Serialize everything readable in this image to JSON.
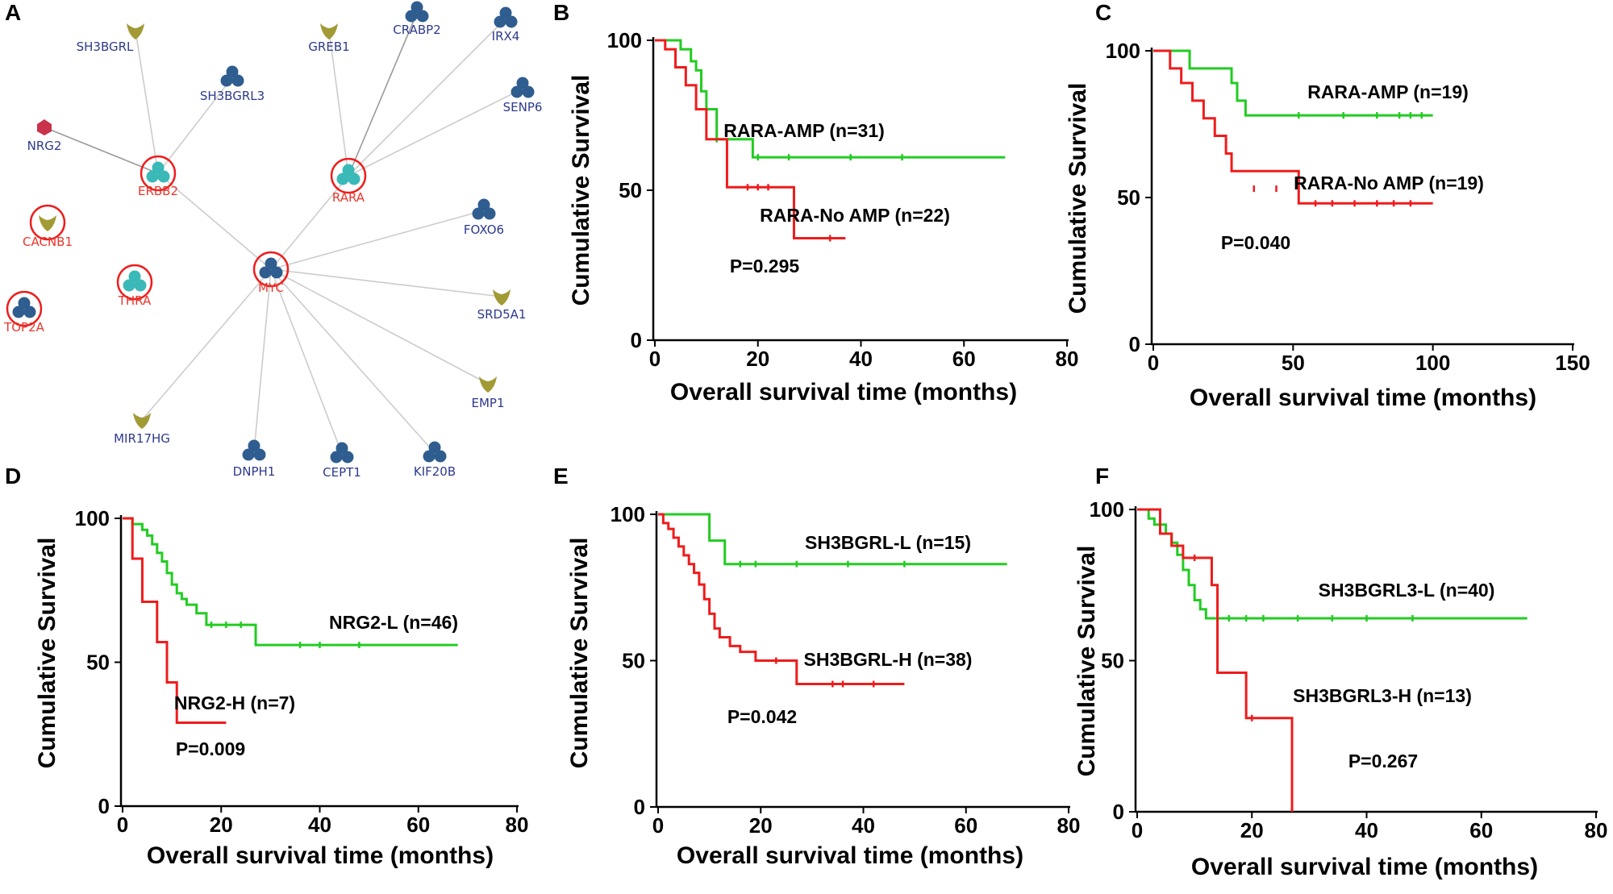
{
  "colors": {
    "green": "#22cc22",
    "red": "#ee1c1c",
    "edge": "#cccccc",
    "highlight": "#ee1c1c",
    "node_blue": "#2f5d8f",
    "node_teal": "#3bb8b8",
    "node_olive": "#a29a34",
    "node_red": "#c8324b",
    "label_blue": "#2d3a8c",
    "label_red": "#e8362c"
  },
  "network": {
    "letter": "A",
    "nodes": [
      {
        "id": "SH3BGRL",
        "shape": "v",
        "color": "node_olive",
        "highlight": false
      },
      {
        "id": "SH3BGRL3",
        "shape": "tri",
        "color": "node_blue",
        "highlight": false
      },
      {
        "id": "GREB1",
        "shape": "v",
        "color": "node_olive",
        "highlight": false
      },
      {
        "id": "CRABP2",
        "shape": "tri",
        "color": "node_blue",
        "highlight": false
      },
      {
        "id": "IRX4",
        "shape": "tri",
        "color": "node_blue",
        "highlight": false
      },
      {
        "id": "SENP6",
        "shape": "tri",
        "color": "node_blue",
        "highlight": false
      },
      {
        "id": "NRG2",
        "shape": "circle",
        "color": "node_red",
        "highlight": false
      },
      {
        "id": "ERBB2",
        "shape": "tri",
        "color": "node_teal",
        "highlight": true
      },
      {
        "id": "RARA",
        "shape": "tri",
        "color": "node_teal",
        "highlight": true
      },
      {
        "id": "CACNB1",
        "shape": "v",
        "color": "node_olive",
        "highlight": true
      },
      {
        "id": "FOXO6",
        "shape": "tri",
        "color": "node_blue",
        "highlight": false
      },
      {
        "id": "THRA",
        "shape": "tri",
        "color": "node_teal",
        "highlight": true
      },
      {
        "id": "MYC",
        "shape": "tri",
        "color": "node_blue",
        "highlight": true
      },
      {
        "id": "TOP2A",
        "shape": "tri",
        "color": "node_blue",
        "highlight": true
      },
      {
        "id": "SRD5A1",
        "shape": "v",
        "color": "node_olive",
        "highlight": false
      },
      {
        "id": "EMP1",
        "shape": "v",
        "color": "node_olive",
        "highlight": false
      },
      {
        "id": "MIR17HG",
        "shape": "v",
        "color": "node_olive",
        "highlight": false
      },
      {
        "id": "DNPH1",
        "shape": "tri",
        "color": "node_blue",
        "highlight": false
      },
      {
        "id": "CEPT1",
        "shape": "tri",
        "color": "node_blue",
        "highlight": false
      },
      {
        "id": "KIF20B",
        "shape": "tri",
        "color": "node_blue",
        "highlight": false
      }
    ],
    "edges": [
      [
        "SH3BGRL",
        "ERBB2"
      ],
      [
        "SH3BGRL3",
        "ERBB2"
      ],
      [
        "NRG2",
        "ERBB2"
      ],
      [
        "ERBB2",
        "MYC"
      ],
      [
        "GREB1",
        "RARA"
      ],
      [
        "CRABP2",
        "RARA"
      ],
      [
        "IRX4",
        "RARA"
      ],
      [
        "SENP6",
        "RARA"
      ],
      [
        "RARA",
        "MYC"
      ],
      [
        "MYC",
        "FOXO6"
      ],
      [
        "MYC",
        "SRD5A1"
      ],
      [
        "MYC",
        "EMP1"
      ],
      [
        "MYC",
        "KIF20B"
      ],
      [
        "MYC",
        "CEPT1"
      ],
      [
        "MYC",
        "DNPH1"
      ],
      [
        "MYC",
        "MIR17HG"
      ]
    ]
  },
  "chart_data": [
    {
      "panel": "B",
      "type": "line",
      "step": true,
      "xlabel": "Overall survival time (months)",
      "ylabel": "Cumulative Survival",
      "xlim": [
        0,
        80
      ],
      "ylim": [
        0,
        100
      ],
      "xticks": [
        0,
        20,
        40,
        60,
        80
      ],
      "yticks": [
        0,
        50,
        100
      ],
      "pvalue": "P=0.295",
      "series": [
        {
          "name": "RARA-AMP (n=31)",
          "color": "green",
          "times": [
            3,
            5,
            7,
            8,
            9,
            10,
            12,
            19,
            68
          ],
          "values": [
            100,
            97,
            93,
            90,
            83,
            77,
            67,
            61,
            61
          ],
          "censored": [
            [
              12,
              67
            ],
            [
              20,
              61
            ],
            [
              26,
              61
            ],
            [
              38,
              61
            ],
            [
              48,
              61
            ]
          ]
        },
        {
          "name": "RARA-No AMP (n=22)",
          "color": "red",
          "times": [
            2,
            4,
            6,
            8,
            10,
            14,
            27,
            37
          ],
          "values": [
            97,
            91,
            85,
            77,
            67,
            51,
            34,
            34
          ],
          "censored": [
            [
              18,
              51
            ],
            [
              20,
              51
            ],
            [
              22,
              51
            ],
            [
              34,
              34
            ]
          ]
        }
      ]
    },
    {
      "panel": "C",
      "type": "line",
      "step": true,
      "xlabel": "Overall survival time (months)",
      "ylabel": "Cumulative Survival",
      "xlim": [
        0,
        150
      ],
      "ylim": [
        0,
        100
      ],
      "xticks": [
        0,
        50,
        100,
        150
      ],
      "yticks": [
        0,
        50,
        100
      ],
      "pvalue": "P=0.040",
      "series": [
        {
          "name": "RARA-AMP (n=19)",
          "color": "green",
          "times": [
            13,
            28,
            30,
            33,
            100
          ],
          "values": [
            94,
            89,
            83,
            78,
            78
          ],
          "censored": [
            [
              52,
              78
            ],
            [
              68,
              78
            ],
            [
              80,
              78
            ],
            [
              88,
              78
            ],
            [
              92,
              78
            ],
            [
              96,
              78
            ]
          ]
        },
        {
          "name": "RARA-No AMP (n=19)",
          "color": "red",
          "times": [
            6,
            10,
            14,
            18,
            22,
            26,
            28,
            52,
            100
          ],
          "values": [
            94,
            89,
            83,
            77,
            71,
            65,
            59,
            48,
            48
          ],
          "censored": [
            [
              36,
              53
            ],
            [
              44,
              53
            ],
            [
              58,
              48
            ],
            [
              64,
              48
            ],
            [
              72,
              48
            ],
            [
              80,
              48
            ],
            [
              86,
              48
            ],
            [
              92,
              48
            ]
          ]
        }
      ]
    },
    {
      "panel": "D",
      "type": "line",
      "step": true,
      "xlabel": "Overall survival time (months)",
      "ylabel": "Cumulative Survival",
      "xlim": [
        0,
        80
      ],
      "ylim": [
        0,
        100
      ],
      "xticks": [
        0,
        20,
        40,
        60,
        80
      ],
      "yticks": [
        0,
        50,
        100
      ],
      "pvalue": "P=0.009",
      "series": [
        {
          "name": "NRG2-L (n=46)",
          "color": "green",
          "times": [
            2,
            4,
            5,
            6,
            7,
            8,
            9,
            10,
            11,
            12,
            13,
            15,
            17,
            27,
            68
          ],
          "values": [
            98,
            96,
            94,
            91,
            88,
            85,
            81,
            77,
            74,
            72,
            70,
            67,
            63,
            56,
            56
          ],
          "censored": [
            [
              18,
              63
            ],
            [
              21,
              63
            ],
            [
              24,
              63
            ],
            [
              36,
              56
            ],
            [
              40,
              56
            ],
            [
              48,
              56
            ]
          ]
        },
        {
          "name": "NRG2-H (n=7)",
          "color": "red",
          "times": [
            2,
            4,
            7,
            9,
            11,
            21
          ],
          "values": [
            86,
            71,
            57,
            43,
            29,
            29
          ],
          "censored": []
        }
      ]
    },
    {
      "panel": "E",
      "type": "line",
      "step": true,
      "xlabel": "Overall survival time (months)",
      "ylabel": "Cumulative Survival",
      "xlim": [
        0,
        80
      ],
      "ylim": [
        0,
        100
      ],
      "xticks": [
        0,
        20,
        40,
        60,
        80
      ],
      "yticks": [
        0,
        50,
        100
      ],
      "pvalue": "P=0.042",
      "series": [
        {
          "name": "SH3BGRL-L (n=15)",
          "color": "green",
          "times": [
            10,
            13,
            68
          ],
          "values": [
            91,
            83,
            83
          ],
          "censored": [
            [
              16,
              83
            ],
            [
              19,
              83
            ],
            [
              27,
              83
            ],
            [
              37,
              83
            ],
            [
              48,
              83
            ]
          ]
        },
        {
          "name": "SH3BGRL-H (n=38)",
          "color": "red",
          "times": [
            1,
            2,
            3,
            4,
            5,
            6,
            7,
            8,
            9,
            10,
            11,
            12,
            14,
            16,
            19,
            27,
            48
          ],
          "values": [
            97,
            95,
            92,
            89,
            86,
            83,
            80,
            76,
            71,
            66,
            61,
            58,
            55,
            53,
            50,
            42,
            42
          ],
          "censored": [
            [
              23,
              50
            ],
            [
              34,
              42
            ],
            [
              36,
              42
            ],
            [
              42,
              42
            ]
          ]
        }
      ]
    },
    {
      "panel": "F",
      "type": "line",
      "step": true,
      "xlabel": "Overall survival time (months)",
      "ylabel": "Cumulative Survival",
      "xlim": [
        0,
        80
      ],
      "ylim": [
        0,
        100
      ],
      "xticks": [
        0,
        20,
        40,
        60,
        80
      ],
      "yticks": [
        0,
        50,
        100
      ],
      "pvalue": "P=0.267",
      "series": [
        {
          "name": "SH3BGRL3-L (n=40)",
          "color": "green",
          "times": [
            2,
            3,
            5,
            6,
            7,
            8,
            9,
            10,
            11,
            12,
            68
          ],
          "values": [
            97,
            95,
            92,
            89,
            85,
            80,
            75,
            70,
            67,
            64,
            64
          ],
          "censored": [
            [
              14,
              64
            ],
            [
              16,
              64
            ],
            [
              19,
              64
            ],
            [
              22,
              64
            ],
            [
              28,
              64
            ],
            [
              34,
              64
            ],
            [
              40,
              64
            ],
            [
              48,
              64
            ]
          ]
        },
        {
          "name": "SH3BGRL3-H (n=13)",
          "color": "red",
          "times": [
            4,
            6,
            8,
            13,
            14,
            19,
            27
          ],
          "values": [
            92,
            88,
            84,
            75,
            46,
            31,
            0
          ],
          "censored": [
            [
              10,
              84
            ],
            [
              20,
              31
            ]
          ]
        }
      ]
    }
  ]
}
